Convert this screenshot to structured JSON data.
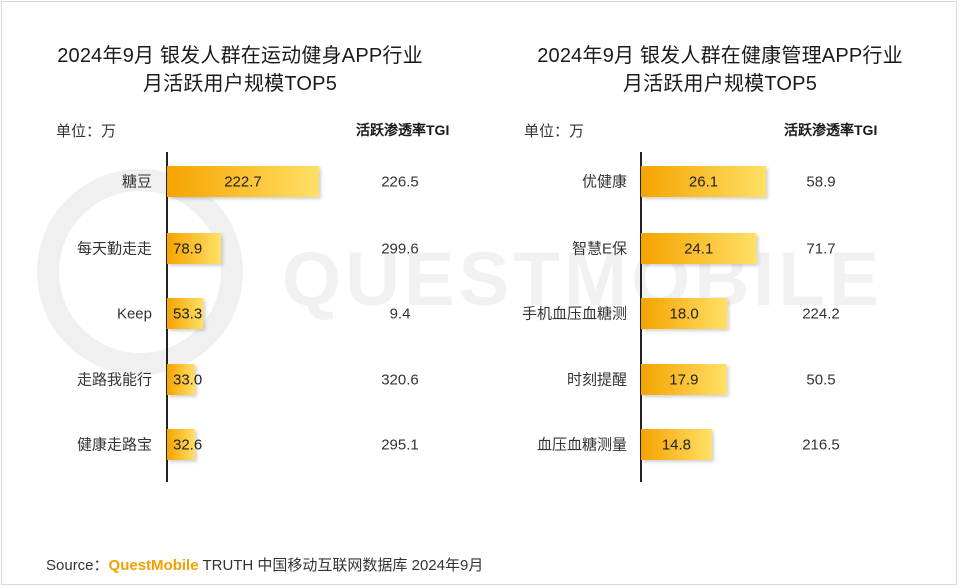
{
  "watermark": "QUESTMOBILE",
  "source": {
    "label": "Source：",
    "brand": "QuestMobile",
    "rest": " TRUTH 中国移动互联网数据库 2024年9月"
  },
  "colors": {
    "bar_start": "#f5a300",
    "bar_end": "#ffe066",
    "axis": "#222222"
  },
  "chart_data": [
    {
      "type": "bar",
      "orientation": "horizontal",
      "title_line1": "2024年9月 银发人群在运动健身APP行业",
      "title_line2": "月活跃用户规模TOP5",
      "unit_label": "单位：万",
      "tgi_header": "活跃渗透率TGI",
      "categories": [
        "糖豆",
        "每天勤走走",
        "Keep",
        "走路我能行",
        "健康走路宝"
      ],
      "values": [
        222.7,
        78.9,
        53.3,
        33.0,
        32.6
      ],
      "value_labels": [
        "222.7",
        "78.9",
        "53.3",
        "33.0",
        "32.6"
      ],
      "tgi": [
        "226.5",
        "299.6",
        "9.4",
        "320.6",
        "295.1"
      ],
      "xlim": [
        0,
        222.7
      ]
    },
    {
      "type": "bar",
      "orientation": "horizontal",
      "title_line1": "2024年9月 银发人群在健康管理APP行业",
      "title_line2": "月活跃用户规模TOP5",
      "unit_label": "单位：万",
      "tgi_header": "活跃渗透率TGI",
      "categories": [
        "优健康",
        "智慧E保",
        "手机血压血糖测",
        "时刻提醒",
        "血压血糖测量"
      ],
      "values": [
        26.1,
        24.1,
        18.0,
        17.9,
        14.8
      ],
      "value_labels": [
        "26.1",
        "24.1",
        "18.0",
        "17.9",
        "14.8"
      ],
      "tgi": [
        "58.9",
        "71.7",
        "224.2",
        "50.5",
        "216.5"
      ],
      "xlim": [
        0,
        26.1
      ]
    }
  ]
}
